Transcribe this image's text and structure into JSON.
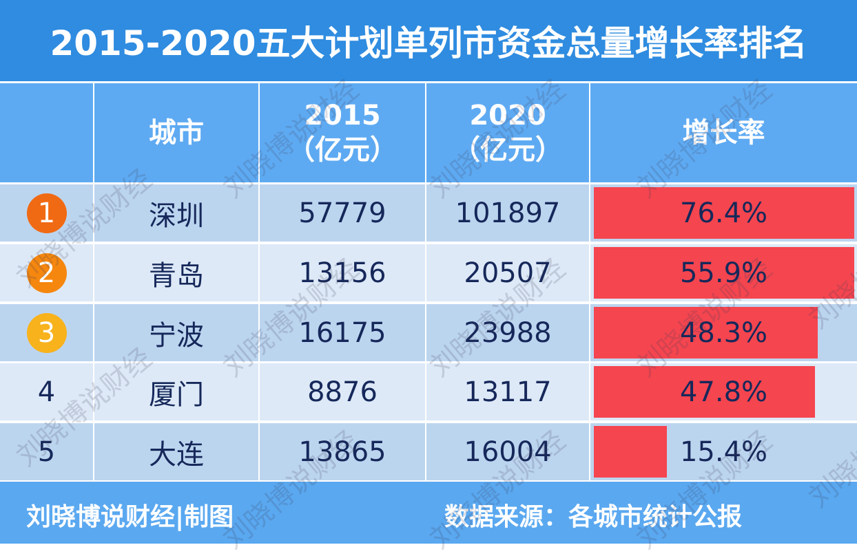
{
  "title": "2015-2020五大计划单列市资金总量增长率排名",
  "headers": {
    "rank": "",
    "city": "城市",
    "y2015": "2015",
    "y2015_unit": "（亿元）",
    "y2020": "2020",
    "y2020_unit": "（亿元）",
    "growth": "增长率"
  },
  "rows": [
    {
      "rank": "1",
      "city": "深圳",
      "v2015": "57779",
      "v2020": "101897",
      "growth": "76.4%",
      "bar_fill": 1.0,
      "badge_color": "#f06a14"
    },
    {
      "rank": "2",
      "city": "青岛",
      "v2015": "13156",
      "v2020": "20507",
      "growth": "55.9%",
      "bar_fill": 1.0,
      "badge_color": "#f5870f"
    },
    {
      "rank": "3",
      "city": "宁波",
      "v2015": "16175",
      "v2020": "23988",
      "growth": "48.3%",
      "bar_fill": 0.86,
      "badge_color": "#f7b21c"
    },
    {
      "rank": "4",
      "city": "厦门",
      "v2015": "8876",
      "v2020": "13117",
      "growth": "47.8%",
      "bar_fill": 0.85,
      "badge_color": null
    },
    {
      "rank": "5",
      "city": "大连",
      "v2015": "13865",
      "v2020": "16004",
      "growth": "15.4%",
      "bar_fill": 0.28,
      "badge_color": null
    }
  ],
  "footer": {
    "author": "刘晓博说财经|制图",
    "source": "数据来源：各城市统计公报"
  },
  "watermark": "刘晓博说财经",
  "colors": {
    "title_bg": "#2f8ce0",
    "header_bg": "#5eaaf2",
    "row_odd": "#bcd5ef",
    "row_even": "#dde9f7",
    "bar": "#f5454f"
  }
}
